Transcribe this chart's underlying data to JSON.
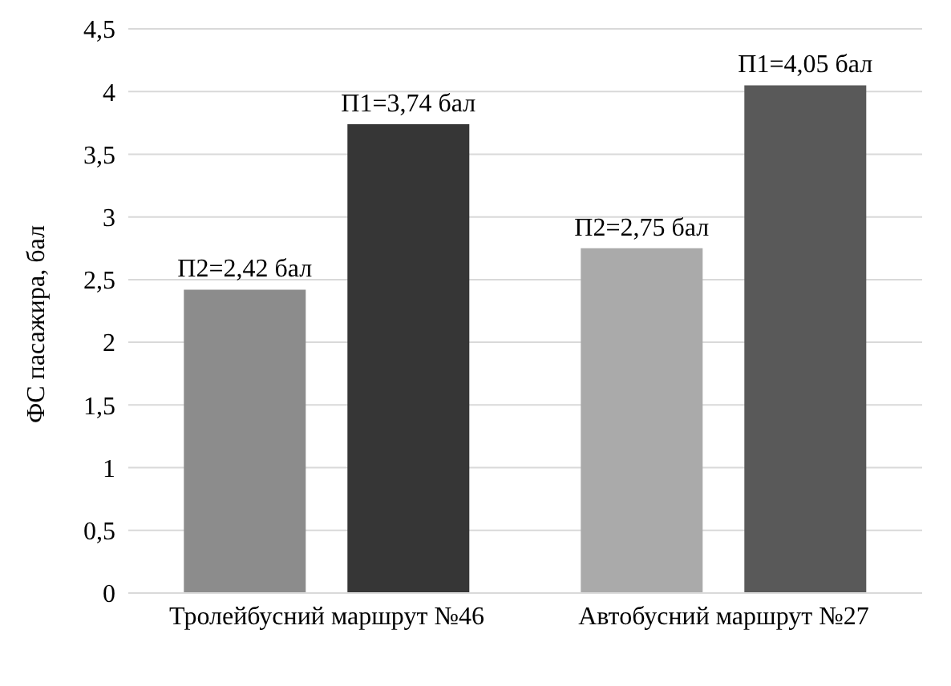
{
  "chart_data": {
    "type": "bar",
    "ylabel": "ФС пасажира, бал",
    "categories": [
      "Тролейбусний маршрут №46",
      "Автобусний маршрут  №27"
    ],
    "series": [
      {
        "colors": [
          "#8c8c8c",
          "#aaaaaa"
        ],
        "values": [
          2.42,
          2.75
        ],
        "value_labels": [
          "П2=2,42 бал",
          "П2=2,75 бал"
        ]
      },
      {
        "colors": [
          "#363636",
          "#595959"
        ],
        "values": [
          3.74,
          4.05
        ],
        "value_labels": [
          "П1=3,74 бал",
          "П1=4,05 бал"
        ]
      }
    ],
    "ylim": [
      0,
      4.5
    ],
    "yticks": [
      0,
      {
        "value": 0.5,
        "label": "0,5"
      },
      1,
      {
        "value": 1.5,
        "label": "1,5"
      },
      2,
      {
        "value": 2.5,
        "label": "2,5"
      },
      3,
      {
        "value": 3.5,
        "label": "3,5"
      },
      4,
      {
        "value": 4.5,
        "label": "4,5"
      }
    ],
    "grid": "y",
    "legend": false
  }
}
